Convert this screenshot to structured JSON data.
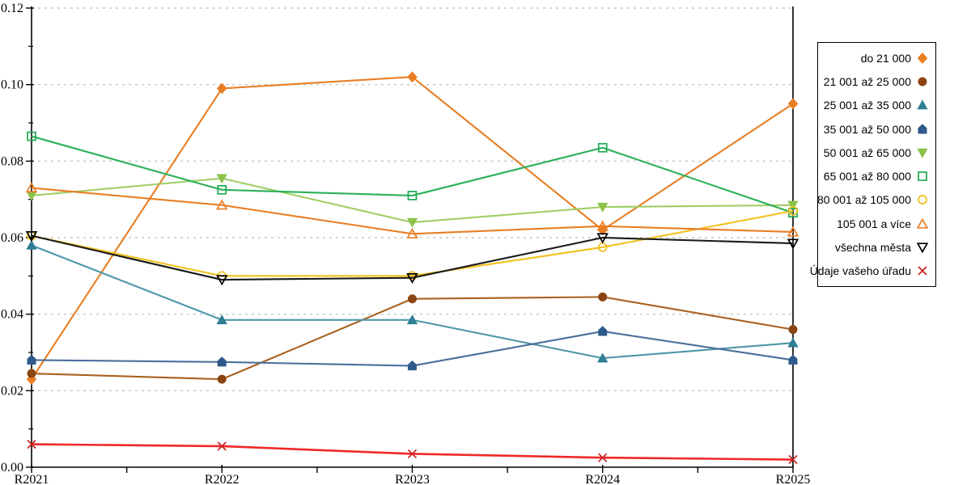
{
  "chart_data": {
    "type": "line",
    "title": "",
    "xlabel": "",
    "ylabel": "",
    "categories": [
      "R2021",
      "R2022",
      "R2023",
      "R2024",
      "R2025"
    ],
    "ylim": [
      0,
      0.12
    ],
    "y_tick_labels": [
      "0.00",
      "0.02",
      "0.04",
      "0.06",
      "0.08",
      "0.10",
      "0.12"
    ],
    "y_major_step": 0.02,
    "y_minor_step": 0.01,
    "grid": "horizontal-dotted",
    "grid_color": "#c6c6c6",
    "axis_color": "#000000",
    "legend_position": "right-outside",
    "series": [
      {
        "name": "do 21 000",
        "marker": "diamond",
        "filled": true,
        "line_color": "#e87e24",
        "marker_color": "#e87e24",
        "values": [
          0.023,
          0.099,
          0.102,
          0.062,
          0.095
        ]
      },
      {
        "name": "21 001 až 25 000",
        "marker": "circle",
        "filled": true,
        "line_color": "#a9611f",
        "marker_color": "#8b4513",
        "values": [
          0.0245,
          0.023,
          0.044,
          0.0445,
          0.036
        ]
      },
      {
        "name": "25 001 až 35 000",
        "marker": "triangle-up",
        "filled": true,
        "line_color": "#4d97a8",
        "marker_color": "#2e7e95",
        "values": [
          0.058,
          0.0385,
          0.0385,
          0.0285,
          0.0325
        ]
      },
      {
        "name": "35 001 až 50 000",
        "marker": "pentagon",
        "filled": true,
        "line_color": "#4a6f9b",
        "marker_color": "#2f5a8c",
        "values": [
          0.028,
          0.0275,
          0.0265,
          0.0355,
          0.028
        ]
      },
      {
        "name": "50 001 až 65 000",
        "marker": "triangle-down",
        "filled": true,
        "line_color": "#9fce63",
        "marker_color": "#8cc24a",
        "values": [
          0.071,
          0.0755,
          0.064,
          0.068,
          0.0685
        ]
      },
      {
        "name": "65 001 až 80 000",
        "marker": "square",
        "filled": false,
        "line_color": "#2cb05a",
        "marker_color": "#1fa853",
        "values": [
          0.0865,
          0.0725,
          0.071,
          0.0835,
          0.0665
        ]
      },
      {
        "name": "80 001 až 105 000",
        "marker": "circle",
        "filled": false,
        "line_color": "#f2c11e",
        "marker_color": "#f0be1d",
        "values": [
          0.0605,
          0.05,
          0.05,
          0.0575,
          0.067
        ]
      },
      {
        "name": "105 001 a více",
        "marker": "triangle-up",
        "filled": false,
        "line_color": "#e87e24",
        "marker_color": "#e87e24",
        "values": [
          0.073,
          0.0685,
          0.061,
          0.063,
          0.0615
        ]
      },
      {
        "name": "všechna města",
        "marker": "triangle-down",
        "filled": false,
        "line_color": "#1a1a1a",
        "marker_color": "#000000",
        "values": [
          0.0605,
          0.049,
          0.0495,
          0.06,
          0.0585
        ]
      },
      {
        "name": "Údaje vašeho úřadu",
        "marker": "x",
        "filled": false,
        "line_color": "#ef2929",
        "marker_color": "#cc2222",
        "values": [
          0.006,
          0.0055,
          0.0035,
          0.0025,
          0.002
        ]
      }
    ]
  }
}
